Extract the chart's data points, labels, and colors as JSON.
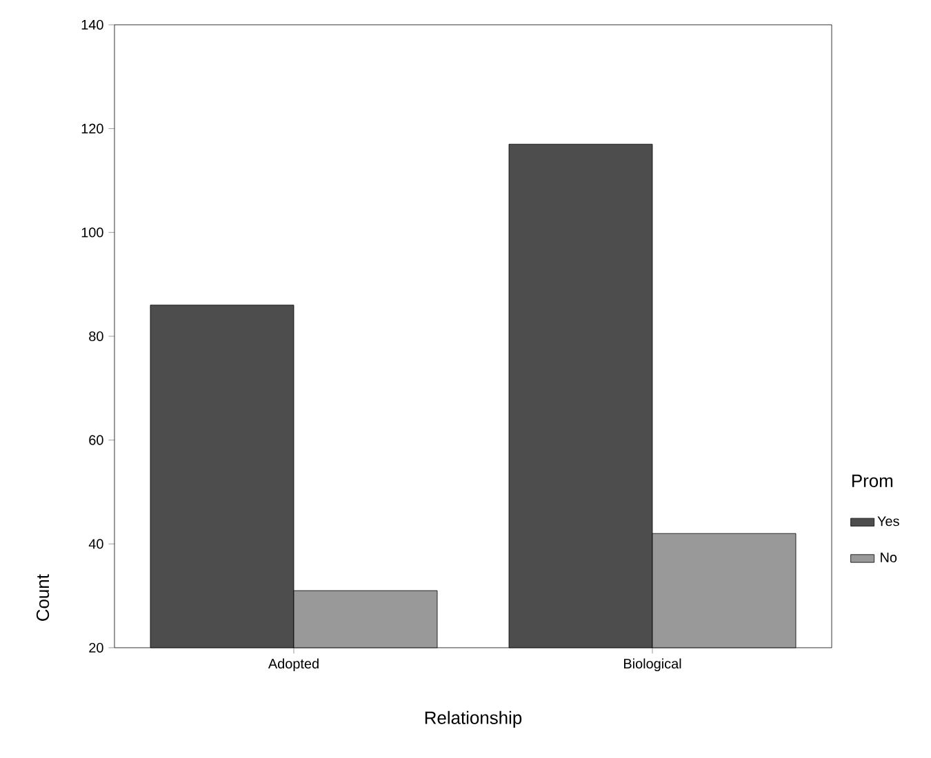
{
  "chart_data": {
    "type": "bar",
    "xlabel": "Relationship",
    "ylabel": "Count",
    "legend_title": "Prom",
    "categories": [
      "Adopted",
      "Biological"
    ],
    "series": [
      {
        "name": "Yes",
        "color": "#4d4d4d",
        "values": [
          86,
          117
        ]
      },
      {
        "name": "No",
        "color": "#999999",
        "values": [
          31,
          42
        ]
      }
    ],
    "ylim": [
      20,
      140
    ],
    "yticks": [
      20,
      40,
      60,
      80,
      100,
      120,
      140
    ],
    "legend": "right"
  }
}
